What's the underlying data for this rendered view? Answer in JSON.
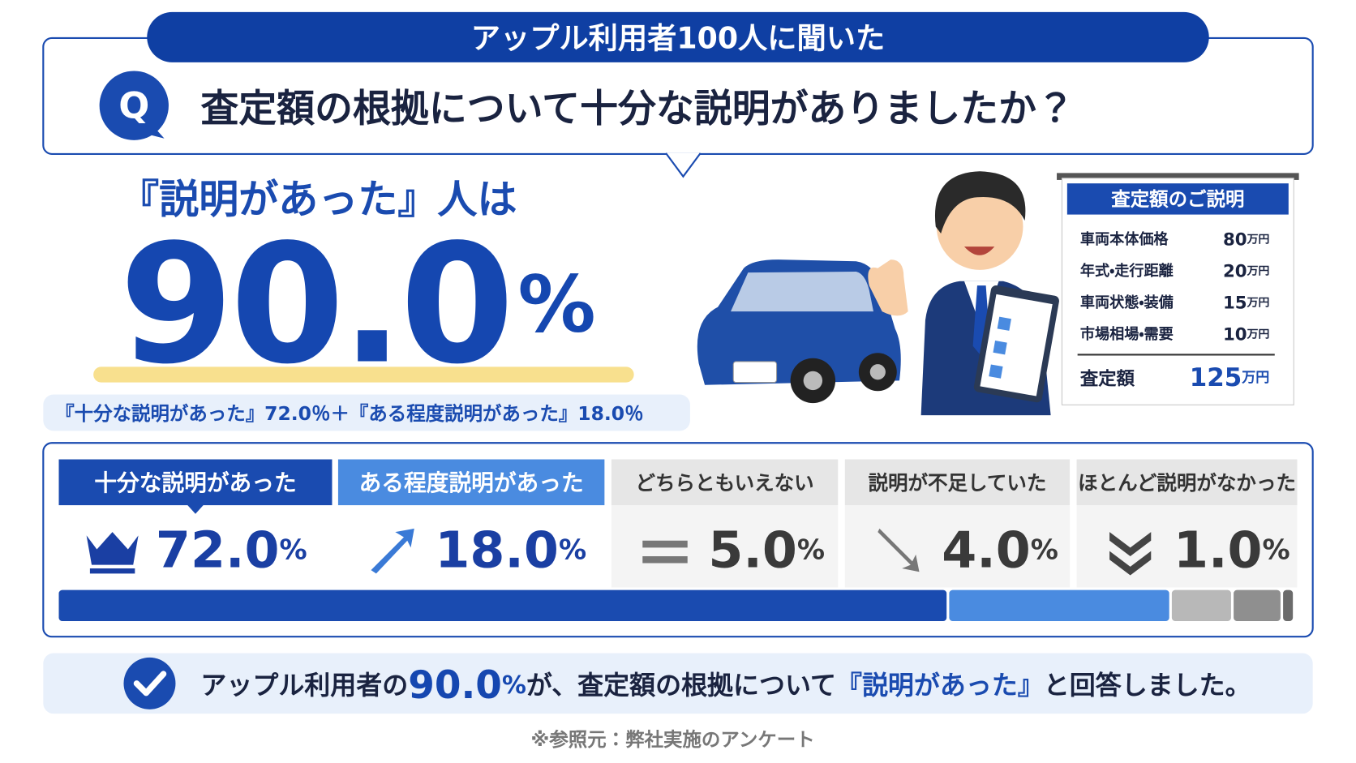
{
  "header": {
    "banner": "アップル利用者100人に聞いた",
    "question_badge": "Q",
    "question": "査定額の根拠について十分な説明がありましたか？"
  },
  "headline": {
    "lead": "『説明があった』人は",
    "value": 90,
    "value_label": "90.0",
    "unit": "%",
    "breakdown": "『十分な説明があった』72.0％＋『ある程度説明があった』18.0％"
  },
  "estimate_board": {
    "title": "査定額のご説明",
    "unit": "万円",
    "rows": [
      {
        "label": "車両本体価格",
        "value": 80
      },
      {
        "label": "年式・走行距離",
        "value": 20
      },
      {
        "label": "車両状態・装備",
        "value": 15
      },
      {
        "label": "市場相場・需要",
        "value": 10
      }
    ],
    "total": {
      "label": "査定額",
      "value": 125
    }
  },
  "chart_data": {
    "type": "stacked_bar",
    "categories": [
      "十分な説明があった",
      "ある程度説明があった",
      "どちらともいえない",
      "説明が不足していた",
      "ほとんど説明がなかった"
    ],
    "values": [
      72,
      18,
      5,
      4,
      1
    ],
    "value_labels": [
      "72.0",
      "18.0",
      "5.0",
      "4.0",
      "1.0"
    ],
    "unit": "%",
    "colors": [
      "#1a4bb0",
      "#4a8be0",
      "#b8b8b8",
      "#8f8f8f",
      "#6b6b6b"
    ],
    "xlim": [
      0,
      100
    ]
  },
  "summary": {
    "before": "アップル利用者の",
    "middle": "が、査定額の根拠について",
    "highlight": "『説明があった』",
    "after": "と回答しました。"
  },
  "source": "※参照元：弊社実施のアンケート"
}
